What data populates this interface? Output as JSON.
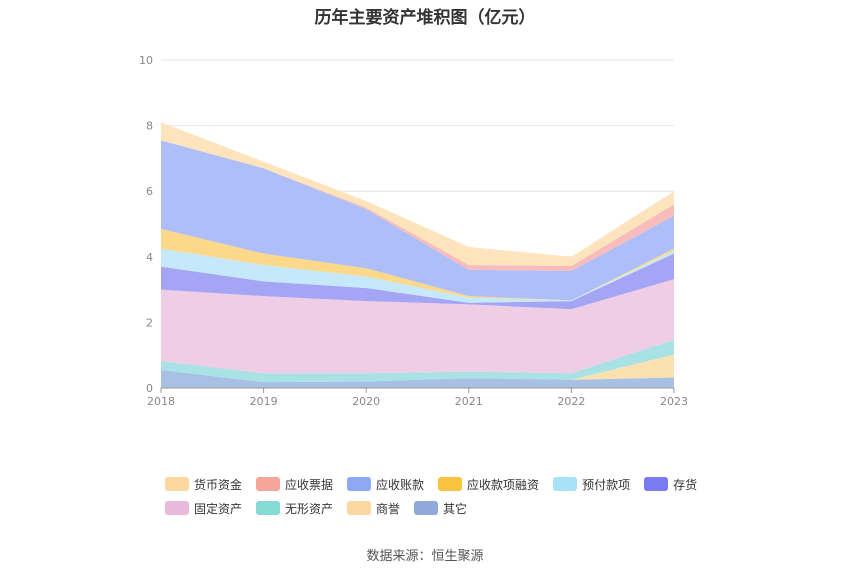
{
  "title": "历年主要资产堆积图（亿元）",
  "source": "数据来源：恒生聚源",
  "chart_data": {
    "type": "area",
    "stacked": true,
    "x": [
      "2018",
      "2019",
      "2020",
      "2021",
      "2022",
      "2023"
    ],
    "ylim": [
      0,
      10
    ],
    "yticks": [
      "0",
      "2",
      "4",
      "6",
      "8",
      "10"
    ],
    "grid": true,
    "legend_position": "bottom",
    "series": [
      {
        "name": "其它",
        "color": "#a8c0e4",
        "values": [
          0.55,
          0.18,
          0.2,
          0.3,
          0.25,
          0.32
        ]
      },
      {
        "name": "商誉",
        "color": "#fbe0b0",
        "values": [
          0,
          0,
          0,
          0,
          0,
          0.7
        ]
      },
      {
        "name": "无形资产",
        "color": "#a9e2e4",
        "values": [
          0.27,
          0.27,
          0.25,
          0.2,
          0.2,
          0.45
        ]
      },
      {
        "name": "固定资产",
        "color": "#efcde4",
        "values": [
          2.18,
          2.35,
          2.2,
          2.05,
          1.95,
          1.85
        ]
      },
      {
        "name": "存货",
        "color": "#a5a5f5",
        "values": [
          0.7,
          0.45,
          0.4,
          0.05,
          0.25,
          0.78
        ]
      },
      {
        "name": "预付款项",
        "color": "#c5e9fb",
        "values": [
          0.55,
          0.5,
          0.35,
          0.15,
          0.02,
          0.08
        ]
      },
      {
        "name": "应收款项融资",
        "color": "#fcd88a",
        "values": [
          0.6,
          0.35,
          0.25,
          0.05,
          0,
          0.07
        ]
      },
      {
        "name": "应收账款",
        "color": "#aebef8",
        "values": [
          2.7,
          2.6,
          1.8,
          0.8,
          0.9,
          1.0
        ]
      },
      {
        "name": "应收票据",
        "color": "#f8bcbc",
        "values": [
          0,
          0,
          0.05,
          0.15,
          0.15,
          0.35
        ]
      },
      {
        "name": "货币资金",
        "color": "#fde4bd",
        "values": [
          0.55,
          0.2,
          0.2,
          0.55,
          0.28,
          0.4
        ]
      }
    ]
  },
  "legend": [
    [
      {
        "label": "货币资金",
        "color": "#fcd8a0"
      },
      {
        "label": "应收票据",
        "color": "#f7a49a"
      },
      {
        "label": "应收账款",
        "color": "#8ea9f5"
      },
      {
        "label": "应收款项融资",
        "color": "#fbc340"
      },
      {
        "label": "预付款项",
        "color": "#a8e2f8"
      },
      {
        "label": "存货",
        "color": "#7b7cf0"
      }
    ],
    [
      {
        "label": "固定资产",
        "color": "#e8b9da"
      },
      {
        "label": "无形资产",
        "color": "#86dad6"
      },
      {
        "label": "商誉",
        "color": "#fcd8a0"
      },
      {
        "label": "其它",
        "color": "#8faad8"
      }
    ]
  ]
}
